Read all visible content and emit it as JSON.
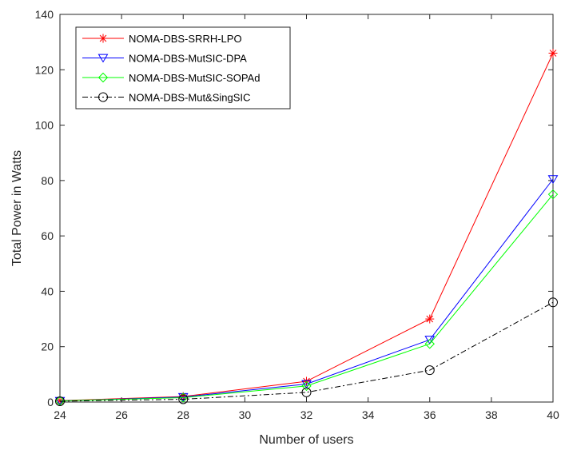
{
  "chart_data": {
    "type": "line",
    "xlabel": "Number of users",
    "ylabel": "Total Power in Watts",
    "xlim": [
      24,
      40
    ],
    "ylim": [
      0,
      140
    ],
    "xticks": [
      24,
      26,
      28,
      30,
      32,
      34,
      36,
      38,
      40
    ],
    "yticks": [
      0,
      20,
      40,
      60,
      80,
      100,
      120,
      140
    ],
    "grid": false,
    "legend_position": "top-left",
    "x": [
      24,
      28,
      32,
      36,
      40
    ],
    "series": [
      {
        "name": "NOMA-DBS-SRRH-LPO",
        "values": [
          0.5,
          2.0,
          7.5,
          30.0,
          126.0
        ],
        "color": "#ff0000",
        "marker": "asterisk",
        "dash": "solid"
      },
      {
        "name": "NOMA-DBS-MutSIC-DPA",
        "values": [
          0.4,
          1.8,
          6.5,
          22.5,
          80.5
        ],
        "color": "#0000ff",
        "marker": "triangle-down",
        "dash": "solid"
      },
      {
        "name": "NOMA-DBS-MutSIC-SOPAd",
        "values": [
          0.4,
          1.6,
          5.8,
          21.0,
          75.0
        ],
        "color": "#00ff00",
        "marker": "diamond",
        "dash": "solid"
      },
      {
        "name": "NOMA-DBS-Mut&SingSIC",
        "values": [
          0.3,
          1.0,
          3.5,
          11.5,
          36.0
        ],
        "color": "#000000",
        "marker": "circle",
        "dash": "dashdot"
      }
    ]
  }
}
